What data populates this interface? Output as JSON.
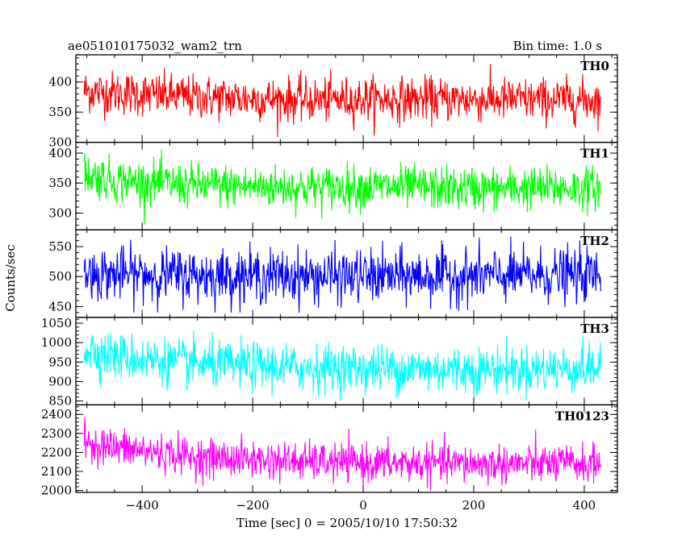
{
  "header": {
    "title": "ae051010175032_wam2_trn",
    "bin_time": "Bin time: 1.0 s"
  },
  "chart_data": {
    "type": "line",
    "title": "ae051010175032_wam2_trn",
    "xlabel": "Time [sec] 0 = 2005/10/10 17:50:32",
    "ylabel": "Counts/sec",
    "xlim": [
      -520,
      460
    ],
    "x_ticks": [
      -400,
      -200,
      0,
      200,
      400
    ],
    "x_range": [
      -505,
      430
    ],
    "bin_time_s": 1.0,
    "grid": false,
    "legend": "none",
    "series": [
      {
        "name": "TH0",
        "color": "#ff0000",
        "ylim": [
          300,
          445
        ],
        "yticks": [
          300,
          350,
          400
        ],
        "mean_profile": [
          [
            -505,
            385
          ],
          [
            -450,
            382
          ],
          [
            -300,
            375
          ],
          [
            -100,
            370
          ],
          [
            0,
            372
          ],
          [
            200,
            371
          ],
          [
            430,
            370
          ]
        ],
        "noise_sd": 18,
        "min": 305,
        "max": 445
      },
      {
        "name": "TH1",
        "color": "#00ff00",
        "ylim": [
          272,
          418
        ],
        "yticks": [
          300,
          350,
          400
        ],
        "mean_profile": [
          [
            -505,
            365
          ],
          [
            -450,
            355
          ],
          [
            -300,
            346
          ],
          [
            -100,
            343
          ],
          [
            0,
            344
          ],
          [
            200,
            341
          ],
          [
            430,
            342
          ]
        ],
        "noise_sd": 18,
        "min": 280,
        "max": 415
      },
      {
        "name": "TH2",
        "color": "#0000ff",
        "ylim": [
          432,
          578
        ],
        "yticks": [
          450,
          500,
          550
        ],
        "mean_profile": [
          [
            -505,
            505
          ],
          [
            -300,
            502
          ],
          [
            0,
            500
          ],
          [
            200,
            501
          ],
          [
            430,
            503
          ]
        ],
        "noise_sd": 22,
        "min": 440,
        "max": 575
      },
      {
        "name": "TH3",
        "color": "#00ffff",
        "ylim": [
          840,
          1065
        ],
        "yticks": [
          850,
          900,
          950,
          1000,
          1050
        ],
        "mean_profile": [
          [
            -505,
            985
          ],
          [
            -450,
            965
          ],
          [
            -300,
            945
          ],
          [
            -100,
            935
          ],
          [
            0,
            935
          ],
          [
            200,
            930
          ],
          [
            430,
            935
          ]
        ],
        "noise_sd": 30,
        "min": 850,
        "max": 1062
      },
      {
        "name": "TH0123",
        "color": "#ff00ff",
        "ylim": [
          1990,
          2450
        ],
        "yticks": [
          2000,
          2100,
          2200,
          2300,
          2400
        ],
        "mean_profile": [
          [
            -505,
            2260
          ],
          [
            -450,
            2225
          ],
          [
            -300,
            2175
          ],
          [
            -100,
            2150
          ],
          [
            0,
            2145
          ],
          [
            200,
            2140
          ],
          [
            430,
            2140
          ]
        ],
        "noise_sd": 50,
        "min": 2000,
        "max": 2440
      }
    ]
  }
}
